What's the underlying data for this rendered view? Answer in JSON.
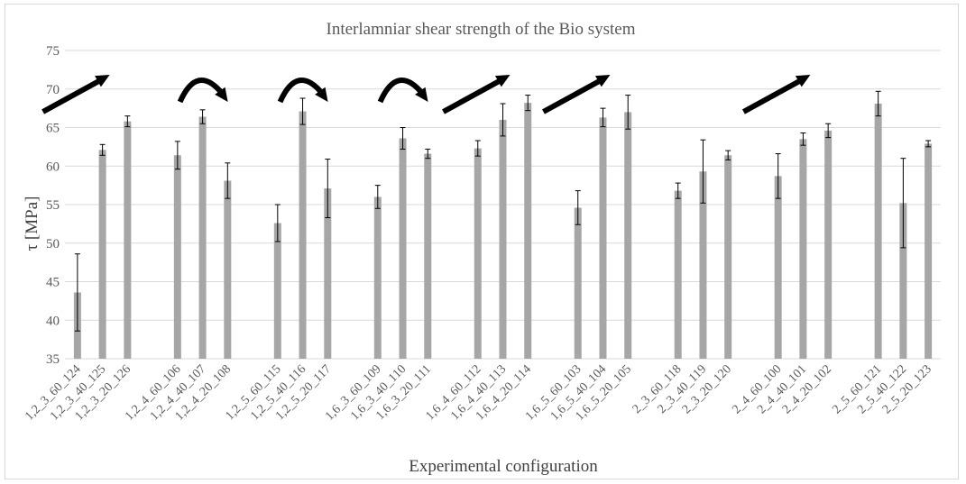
{
  "chart_data": {
    "type": "bar",
    "title": "Interlamniar shear strength of the Bio system",
    "xlabel": "Experimental configuration",
    "ylabel": "τ [MPa]",
    "ylim": [
      35,
      75
    ],
    "yticks": [
      35,
      40,
      45,
      50,
      55,
      60,
      65,
      70,
      75
    ],
    "grid": true,
    "legend": "none",
    "bar_color": "#a6a6a6",
    "gridline_color": "#d9d9d9",
    "arrow_color": "#000000",
    "groups": [
      {
        "categories": [
          "1,2_3_60_124",
          "1,2_3_40_125",
          "1,2_3_20_126"
        ],
        "values": [
          43.6,
          62.1,
          65.8
        ],
        "errors": [
          5.0,
          0.7,
          0.7
        ],
        "trend": "increasing-arrow"
      },
      {
        "categories": [
          "1,2_4_60_106",
          "1,2_4_40_107",
          "1,2_4_20_108"
        ],
        "values": [
          61.4,
          66.4,
          58.1
        ],
        "errors": [
          1.8,
          0.9,
          2.3
        ],
        "trend": "curved-arrow"
      },
      {
        "categories": [
          "1,2_5_60_115",
          "1,2_5_40_116",
          "1,2_5_20_117"
        ],
        "values": [
          52.6,
          67.1,
          57.1
        ],
        "errors": [
          2.4,
          1.7,
          3.8
        ],
        "trend": "curved-arrow"
      },
      {
        "categories": [
          "1,6_3_60_109",
          "1,6_3_40_110",
          "1,6_3_20_111"
        ],
        "values": [
          56.0,
          63.6,
          61.6
        ],
        "errors": [
          1.5,
          1.4,
          0.6
        ],
        "trend": "curved-arrow"
      },
      {
        "categories": [
          "1,6_4_60_112",
          "1,6_4_40_113",
          "1,6_4_20_114"
        ],
        "values": [
          62.3,
          66.0,
          68.2
        ],
        "errors": [
          1.0,
          2.1,
          1.0
        ],
        "trend": "increasing-arrow"
      },
      {
        "categories": [
          "1,6_5_60_103",
          "1,6_5_40_104",
          "1,6_5_20_105"
        ],
        "values": [
          54.6,
          66.3,
          67.0
        ],
        "errors": [
          2.2,
          1.2,
          2.2
        ],
        "trend": "increasing-arrow"
      },
      {
        "categories": [
          "2_3_60_118",
          "2_3_40_119",
          "2_3_20_120"
        ],
        "values": [
          56.8,
          59.3,
          61.4
        ],
        "errors": [
          1.0,
          4.1,
          0.6
        ],
        "trend": "none"
      },
      {
        "categories": [
          "2_4_60_100",
          "2_4_40_101",
          "2_4_20_102"
        ],
        "values": [
          58.7,
          63.5,
          64.6
        ],
        "errors": [
          2.9,
          0.8,
          0.9
        ],
        "trend": "increasing-arrow"
      },
      {
        "categories": [
          "2_5_60_121",
          "2_5_40_122",
          "2_5_20_123"
        ],
        "values": [
          68.1,
          55.2,
          62.9
        ],
        "errors": [
          1.6,
          5.8,
          0.4
        ],
        "trend": "none"
      }
    ]
  }
}
